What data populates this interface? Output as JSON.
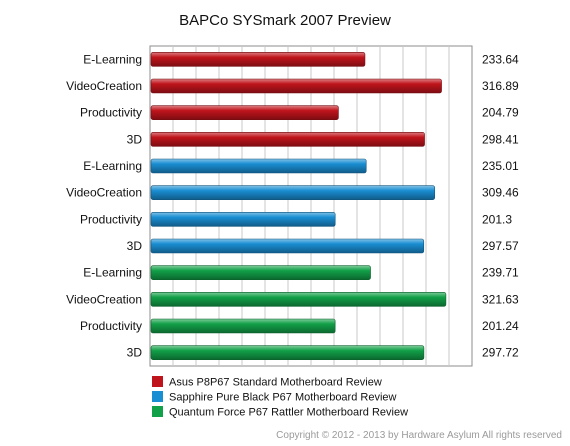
{
  "chart_data": {
    "type": "bar",
    "orientation": "horizontal",
    "title": "BAPCo SYSmark 2007 Preview",
    "xlabel": "",
    "ylabel": "",
    "xlim": [
      0,
      350
    ],
    "grid": true,
    "legend_position": "bottom",
    "bars": [
      {
        "category": "E-Learning",
        "value": 233.64,
        "label": "233.64",
        "series": 0
      },
      {
        "category": "VideoCreation",
        "value": 316.89,
        "label": "316.89",
        "series": 0
      },
      {
        "category": "Productivity",
        "value": 204.79,
        "label": "204.79",
        "series": 0
      },
      {
        "category": "3D",
        "value": 298.41,
        "label": "298.41",
        "series": 0
      },
      {
        "category": "E-Learning",
        "value": 235.01,
        "label": "235.01",
        "series": 1
      },
      {
        "category": "VideoCreation",
        "value": 309.46,
        "label": "309.46",
        "series": 1
      },
      {
        "category": "Productivity",
        "value": 201.3,
        "label": "201.3",
        "series": 1
      },
      {
        "category": "3D",
        "value": 297.57,
        "label": "297.57",
        "series": 1
      },
      {
        "category": "E-Learning",
        "value": 239.71,
        "label": "239.71",
        "series": 2
      },
      {
        "category": "VideoCreation",
        "value": 321.63,
        "label": "321.63",
        "series": 2
      },
      {
        "category": "Productivity",
        "value": 201.24,
        "label": "201.24",
        "series": 2
      },
      {
        "category": "3D",
        "value": 297.72,
        "label": "297.72",
        "series": 2
      }
    ],
    "series": [
      {
        "name": "Asus P8P67 Standard Motherboard Review",
        "color": "#c0141c"
      },
      {
        "name": "Sapphire Pure Black P67 Motherboard Review",
        "color": "#1a8ed2"
      },
      {
        "name": "Quantum Force P67 Rattler Motherboard Review",
        "color": "#12a048"
      }
    ]
  },
  "footer": {
    "copyright": "Copyright © 2012 - 2013 by Hardware Asylum All rights reserved"
  }
}
